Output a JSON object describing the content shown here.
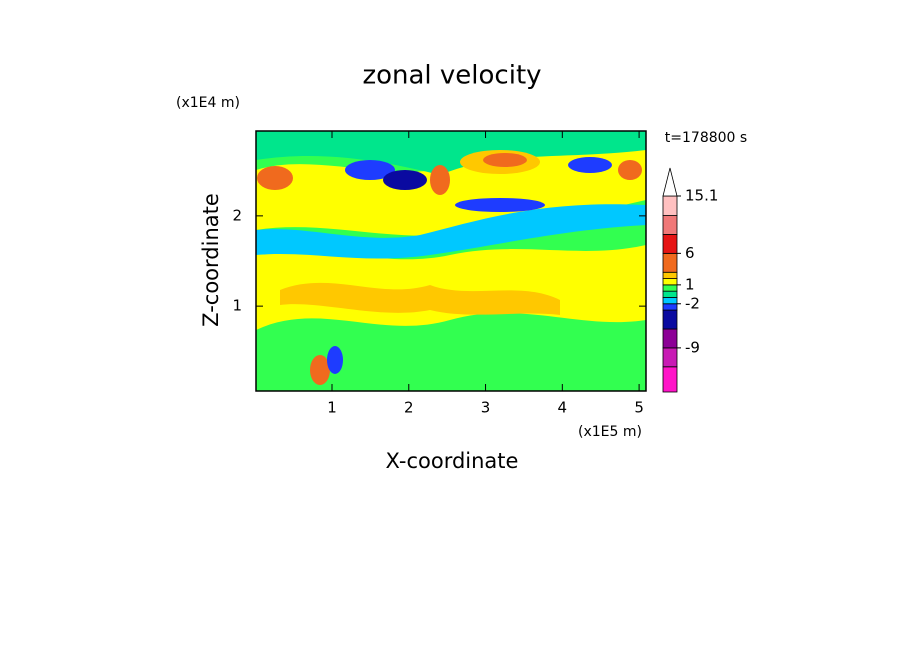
{
  "chart_data": {
    "type": "contour",
    "title": "zonal velocity",
    "x_label": "X-coordinate",
    "y_label": "Z-coordinate",
    "x_unit": "(x1E5 m)",
    "y_unit": "(x1E4 m)",
    "annotation": "t=178800 s",
    "xlim": [
      0.01,
      5.09
    ],
    "ylim": [
      0.06,
      2.94
    ],
    "xticks": [
      1,
      2,
      3,
      4,
      5
    ],
    "yticks": [
      1,
      2
    ],
    "colorbar": {
      "levels": [
        -16,
        -12,
        -9,
        -6,
        -3,
        -2,
        -1,
        0,
        1,
        2,
        3,
        6,
        9,
        12,
        15.1
      ],
      "colors": [
        "#ff14c8",
        "#c81ab4",
        "#8c0096",
        "#0a0aa0",
        "#1e3cff",
        "#00c8ff",
        "#00e68c",
        "#32ff50",
        "#ffff00",
        "#ffc800",
        "#f06a1e",
        "#e61414",
        "#f07878",
        "#ffc0c0"
      ],
      "ticks": [
        -9,
        -2,
        1,
        6,
        15.1
      ]
    }
  }
}
